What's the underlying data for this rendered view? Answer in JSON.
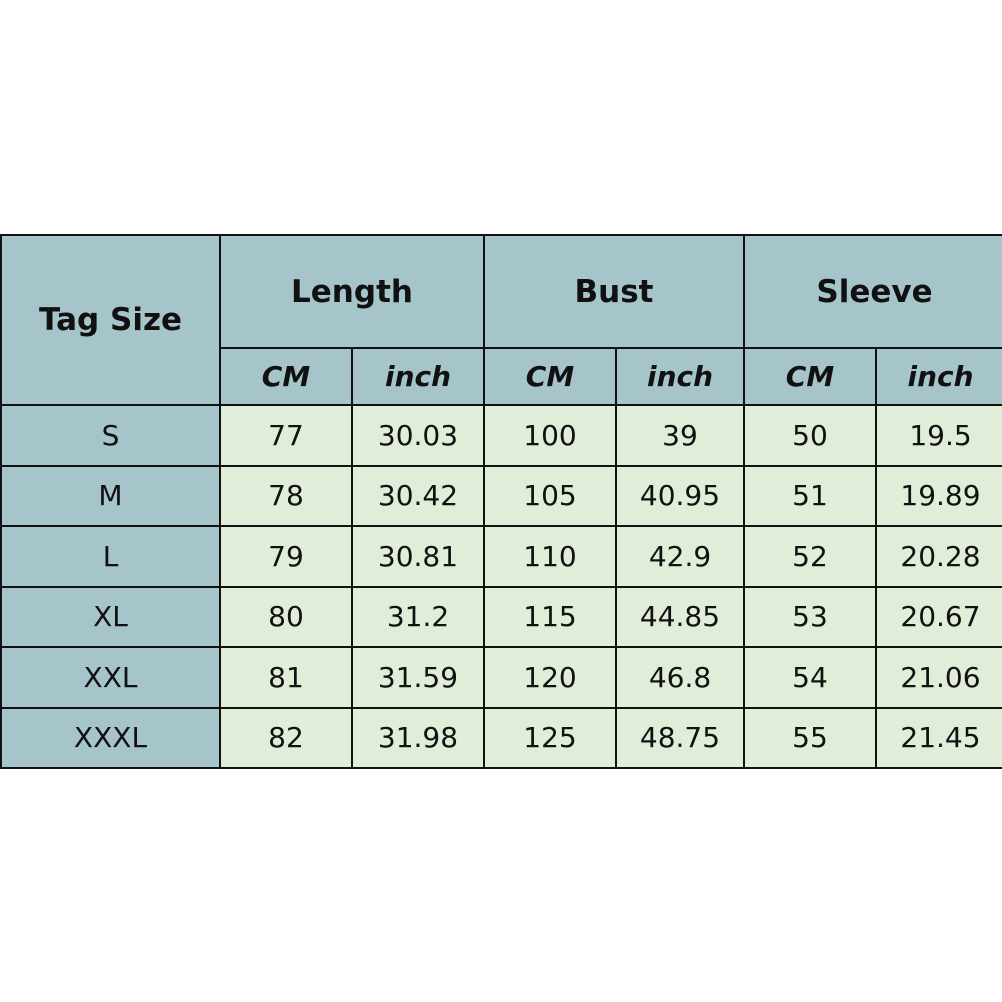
{
  "header": {
    "tag_size": "Tag Size",
    "groups": [
      "Length",
      "Bust",
      "Sleeve"
    ],
    "units": [
      "CM",
      "inch",
      "CM",
      "inch",
      "CM",
      "inch"
    ]
  },
  "rows": [
    {
      "size": "S",
      "values": [
        "77",
        "30.03",
        "100",
        "39",
        "50",
        "19.5"
      ]
    },
    {
      "size": "M",
      "values": [
        "78",
        "30.42",
        "105",
        "40.95",
        "51",
        "19.89"
      ]
    },
    {
      "size": "L",
      "values": [
        "79",
        "30.81",
        "110",
        "42.9",
        "52",
        "20.28"
      ]
    },
    {
      "size": "XL",
      "values": [
        "80",
        "31.2",
        "115",
        "44.85",
        "53",
        "20.67"
      ]
    },
    {
      "size": "XXL",
      "values": [
        "81",
        "31.59",
        "120",
        "46.8",
        "54",
        "21.06"
      ]
    },
    {
      "size": "XXXL",
      "values": [
        "82",
        "31.98",
        "125",
        "48.75",
        "55",
        "21.45"
      ]
    }
  ],
  "colors": {
    "header": "#a5c5cb",
    "cell": "#e0eed9",
    "border": "#111111"
  }
}
